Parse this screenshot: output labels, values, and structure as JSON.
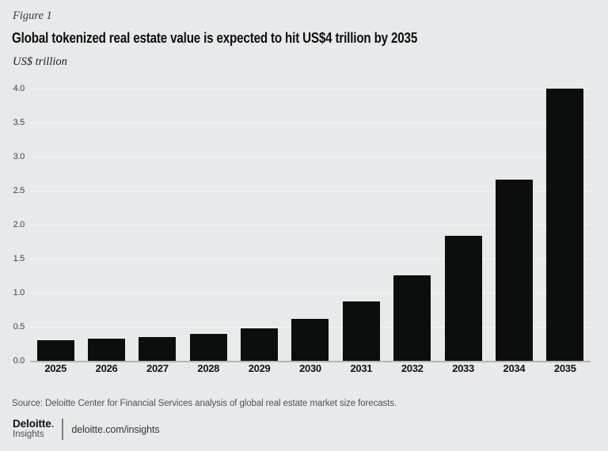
{
  "figure_label": "Figure 1",
  "title": "Global tokenized real estate value is expected to hit US$4 trillion by 2035",
  "subtitle": "US$ trillion",
  "source": "Source: Deloitte Center for Financial Services analysis of global real estate market size forecasts.",
  "footer": {
    "brand": "Deloitte",
    "brand_dot": ".",
    "brand_sub": "Insights",
    "link": "deloitte.com/insights"
  },
  "colors": {
    "background": "#e8e9ea",
    "bar": "#0c0d0d",
    "gridline": "#f3f4f5",
    "axis_line": "#b3b5b7"
  },
  "chart_data": {
    "type": "bar",
    "title": "Global tokenized real estate value is expected to hit US$4 trillion by 2035",
    "categories": [
      "2025",
      "2026",
      "2027",
      "2028",
      "2029",
      "2030",
      "2031",
      "2032",
      "2033",
      "2034",
      "2035"
    ],
    "values": [
      0.3,
      0.32,
      0.35,
      0.4,
      0.48,
      0.62,
      0.87,
      1.26,
      1.84,
      2.66,
      4.0
    ],
    "xlabel": "",
    "ylabel": "US$ trillion",
    "ylim": [
      0,
      4
    ],
    "ytick_step": 0.5,
    "ytick_labels": [
      "4.0",
      "3.5",
      "3.0",
      "2.5",
      "2.0",
      "1.5",
      "1.0",
      "0.5",
      "0.0"
    ],
    "grid": true,
    "legend": false,
    "bar_color": "#0c0d0d"
  }
}
